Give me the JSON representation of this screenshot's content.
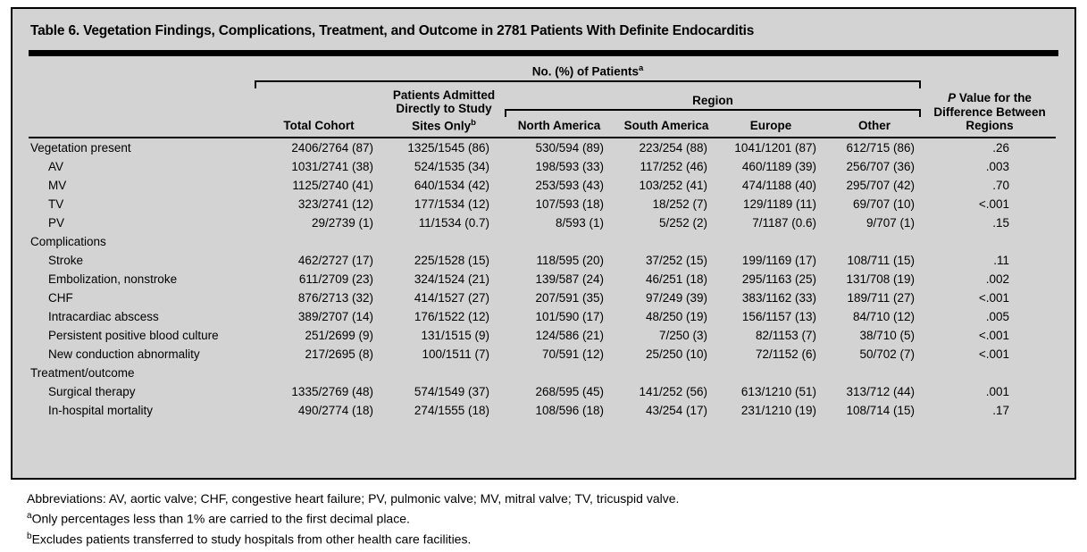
{
  "title": "Table 6. Vegetation Findings, Complications, Treatment, and Outcome in 2781 Patients With Definite Endocarditis",
  "header": {
    "patients_group": {
      "text": "No. (%) of Patients",
      "sup": "a"
    },
    "region_group": "Region",
    "col_total": "Total Cohort",
    "col_admitted": {
      "text": "Patients Admitted Directly to Study Sites Only",
      "sup": "b"
    },
    "col_regions": [
      "North America",
      "South America",
      "Europe",
      "Other"
    ],
    "col_pvalue": {
      "italic": "P",
      "text": " Value for the Difference Between Regions"
    }
  },
  "table": {
    "rows": [
      {
        "label": "Vegetation present",
        "indent": false,
        "section": false,
        "values": [
          "2406/2764 (87)",
          "1325/1545 (86)",
          "530/594 (89)",
          "223/254 (88)",
          "1041/1201 (87)",
          "612/715 (86)",
          ".26"
        ]
      },
      {
        "label": "AV",
        "indent": true,
        "section": false,
        "values": [
          "1031/2741 (38)",
          "524/1535 (34)",
          "198/593 (33)",
          "117/252 (46)",
          "460/1189 (39)",
          "256/707 (36)",
          ".003"
        ]
      },
      {
        "label": "MV",
        "indent": true,
        "section": false,
        "values": [
          "1125/2740 (41)",
          "640/1534 (42)",
          "253/593 (43)",
          "103/252 (41)",
          "474/1188 (40)",
          "295/707 (42)",
          ".70"
        ]
      },
      {
        "label": "TV",
        "indent": true,
        "section": false,
        "values": [
          "323/2741 (12)",
          "177/1534 (12)",
          "107/593 (18)",
          "18/252 (7)",
          "129/1189 (11)",
          "69/707 (10)",
          "<.001"
        ]
      },
      {
        "label": "PV",
        "indent": true,
        "section": false,
        "values": [
          "29/2739 (1)",
          "11/1534 (0.7)",
          "8/593 (1)",
          "5/252 (2)",
          "7/1187 (0.6)",
          "9/707 (1)",
          ".15"
        ]
      },
      {
        "label": "Complications",
        "indent": false,
        "section": true,
        "values": []
      },
      {
        "label": "Stroke",
        "indent": true,
        "section": false,
        "values": [
          "462/2727 (17)",
          "225/1528 (15)",
          "118/595 (20)",
          "37/252 (15)",
          "199/1169 (17)",
          "108/711 (15)",
          ".11"
        ]
      },
      {
        "label": "Embolization, nonstroke",
        "indent": true,
        "section": false,
        "values": [
          "611/2709 (23)",
          "324/1524 (21)",
          "139/587 (24)",
          "46/251 (18)",
          "295/1163 (25)",
          "131/708 (19)",
          ".002"
        ]
      },
      {
        "label": "CHF",
        "indent": true,
        "section": false,
        "values": [
          "876/2713 (32)",
          "414/1527 (27)",
          "207/591 (35)",
          "97/249 (39)",
          "383/1162 (33)",
          "189/711 (27)",
          "<.001"
        ]
      },
      {
        "label": "Intracardiac abscess",
        "indent": true,
        "section": false,
        "values": [
          "389/2707 (14)",
          "176/1522 (12)",
          "101/590 (17)",
          "48/250 (19)",
          "156/1157 (13)",
          "84/710 (12)",
          ".005"
        ]
      },
      {
        "label": "Persistent positive blood culture",
        "indent": true,
        "section": false,
        "values": [
          "251/2699 (9)",
          "131/1515 (9)",
          "124/586 (21)",
          "7/250 (3)",
          "82/1153 (7)",
          "38/710 (5)",
          "<.001"
        ]
      },
      {
        "label": "New conduction abnormality",
        "indent": true,
        "section": false,
        "values": [
          "217/2695 (8)",
          "100/1511 (7)",
          "70/591 (12)",
          "25/250 (10)",
          "72/1152 (6)",
          "50/702 (7)",
          "<.001"
        ]
      },
      {
        "label": "Treatment/outcome",
        "indent": false,
        "section": true,
        "values": []
      },
      {
        "label": "Surgical therapy",
        "indent": true,
        "section": false,
        "values": [
          "1335/2769 (48)",
          "574/1549 (37)",
          "268/595 (45)",
          "141/252 (56)",
          "613/1210 (51)",
          "313/712 (44)",
          ".001"
        ]
      },
      {
        "label": "In-hospital mortality",
        "indent": true,
        "section": false,
        "values": [
          "490/2774 (18)",
          "274/1555 (18)",
          "108/596 (18)",
          "43/254 (17)",
          "231/1210 (19)",
          "108/714 (15)",
          ".17"
        ]
      }
    ]
  },
  "footnotes": {
    "abbreviations": "Abbreviations: AV, aortic valve; CHF, congestive heart failure; PV, pulmonic valve; MV, mitral valve; TV, tricuspid valve.",
    "a": {
      "sup": "a",
      "text": "Only percentages less than 1% are carried to the first decimal place."
    },
    "b": {
      "sup": "b",
      "text": "Excludes patients transferred to study hospitals from other health care facilities."
    }
  },
  "colors": {
    "panel_bg": "#d3d3d3",
    "border": "#000000",
    "text": "#000000"
  }
}
